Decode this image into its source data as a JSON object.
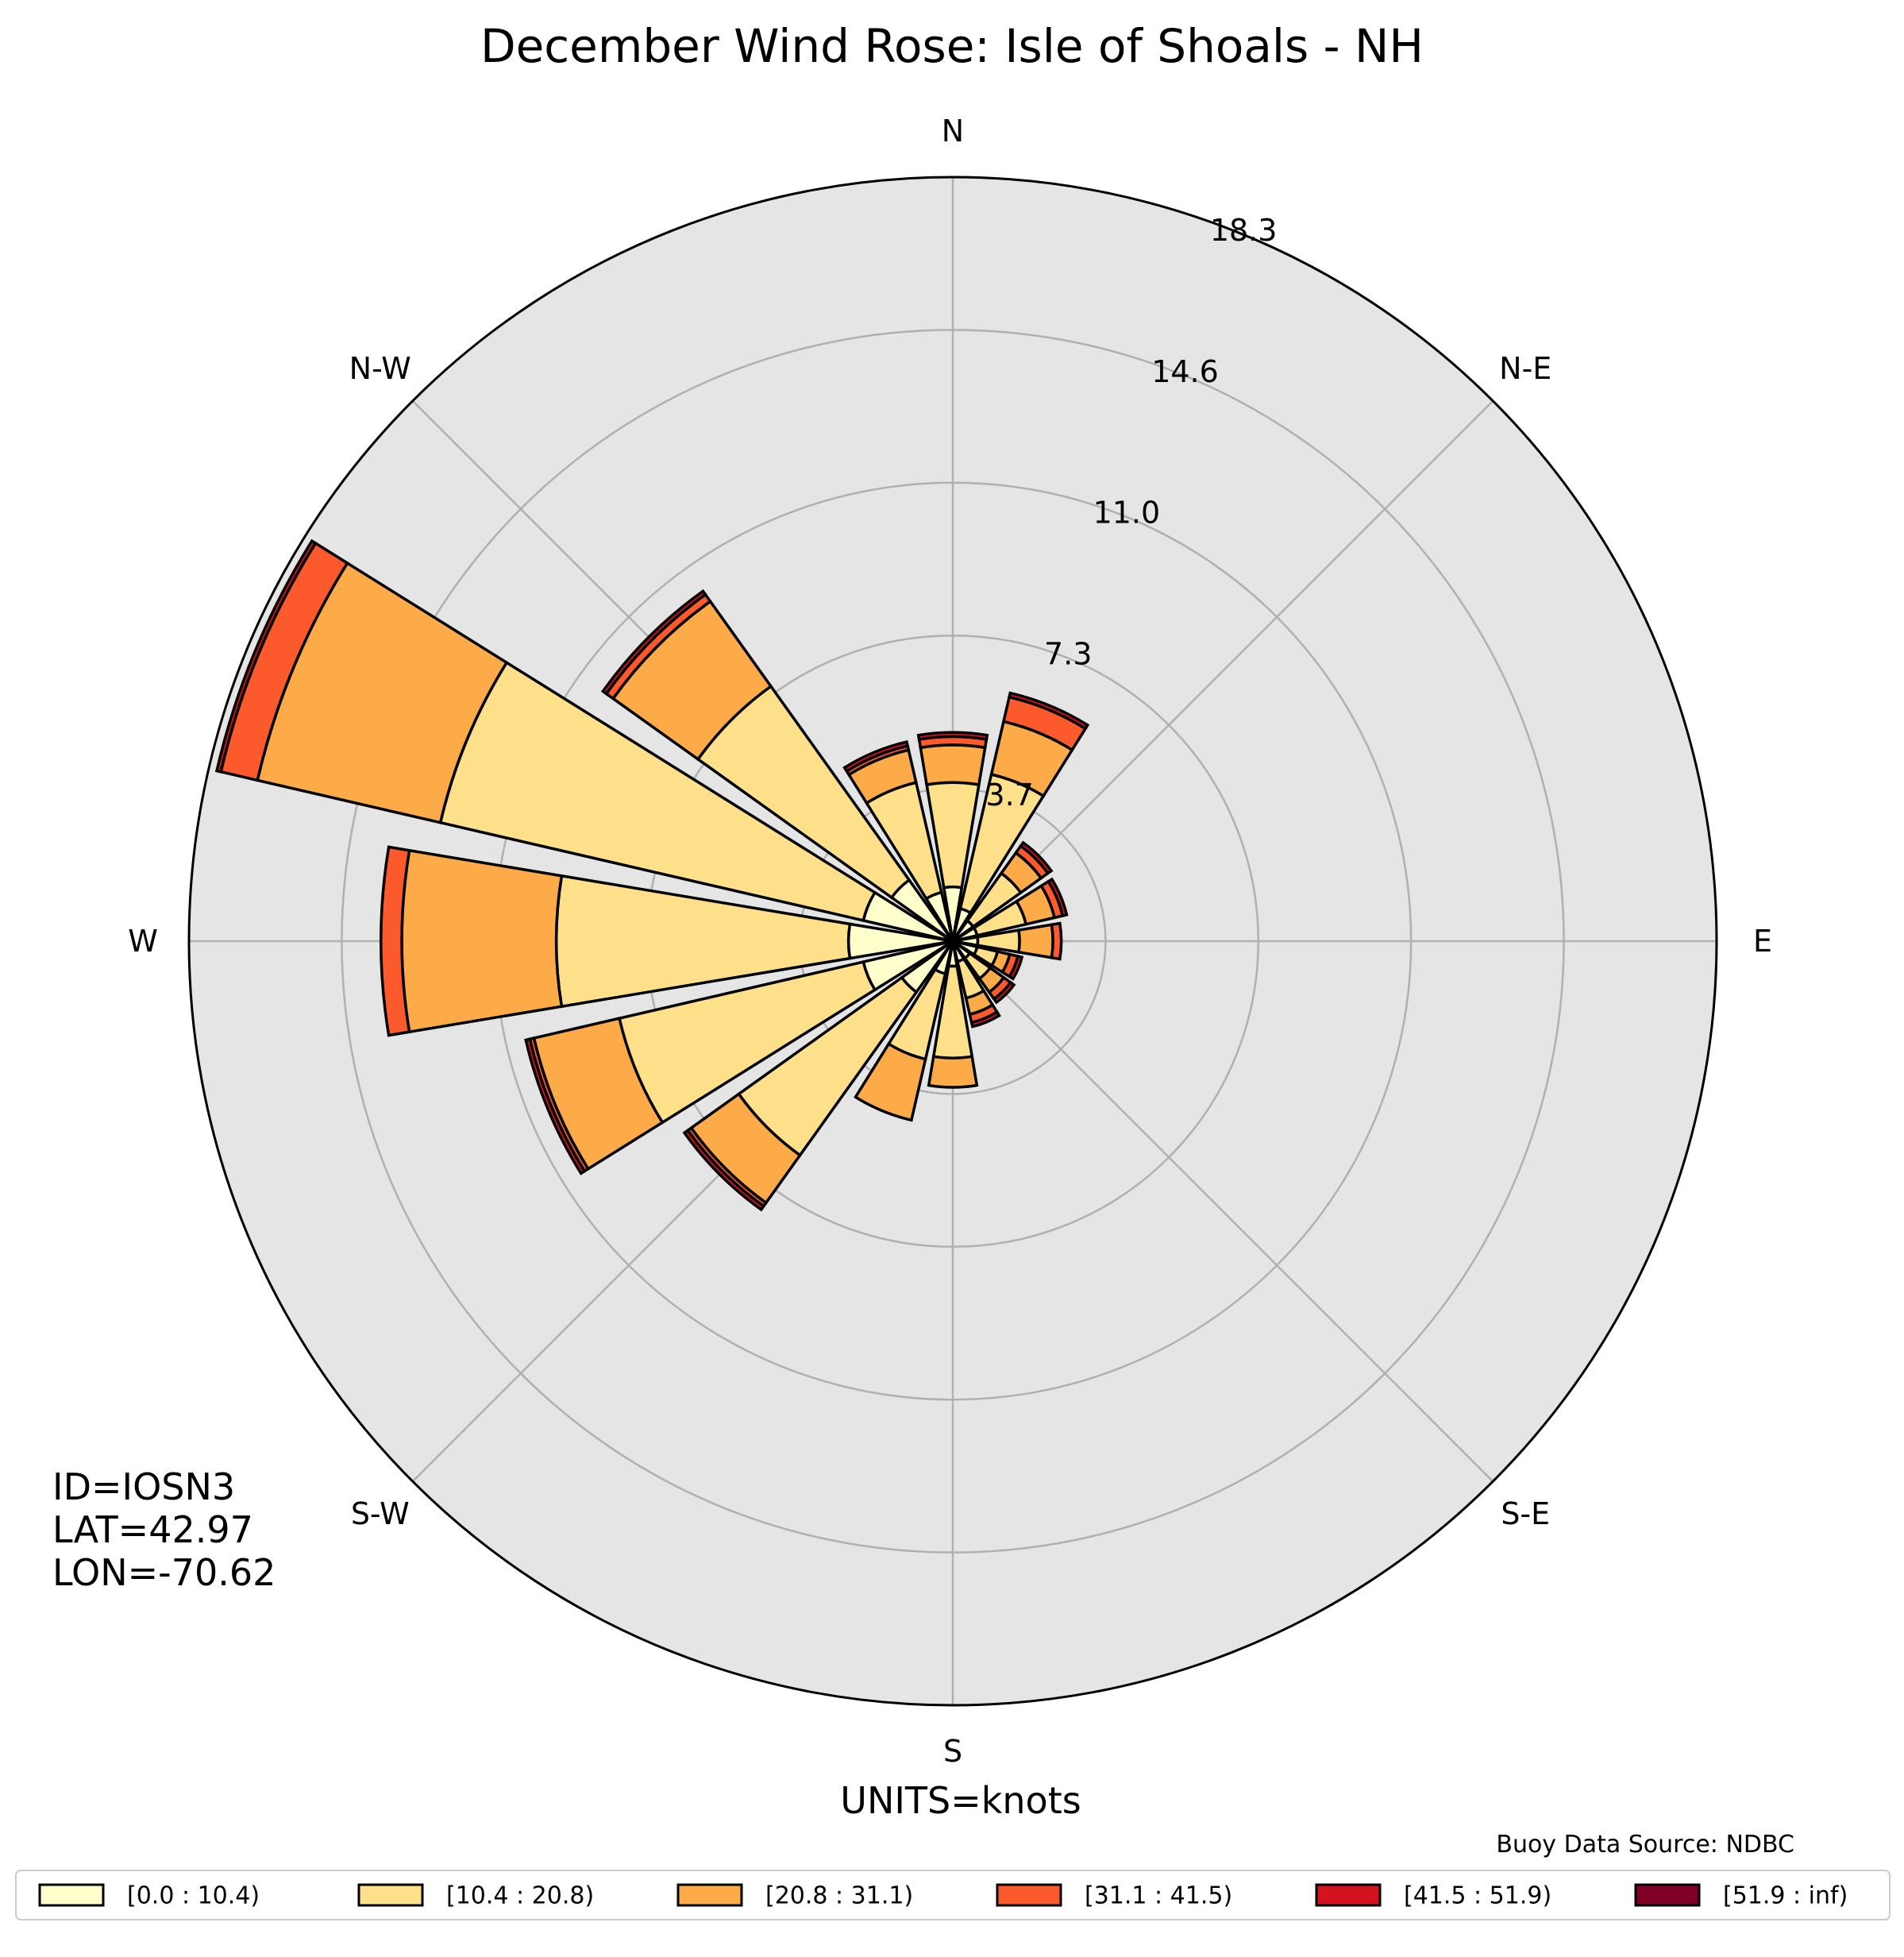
{
  "chart_data": {
    "type": "windrose",
    "title": "December Wind Rose: Isle of Shoals - NH",
    "units_label": "UNITS=knots",
    "source_label": "Buoy Data Source: NDBC",
    "station_info": [
      "ID=IOSN3",
      "LAT=42.97",
      "LON=-70.62"
    ],
    "compass_labels": [
      {
        "dir": 0,
        "label": "N"
      },
      {
        "dir": 45,
        "label": "N-E"
      },
      {
        "dir": 90,
        "label": "E"
      },
      {
        "dir": 135,
        "label": "S-E"
      },
      {
        "dir": 180,
        "label": "S"
      },
      {
        "dir": 225,
        "label": "S-W"
      },
      {
        "dir": 270,
        "label": "W"
      },
      {
        "dir": 315,
        "label": "N-W"
      }
    ],
    "radial_ticks": [
      {
        "value": 3.66,
        "label": "3.7"
      },
      {
        "value": 7.32,
        "label": "7.3"
      },
      {
        "value": 10.98,
        "label": "11.0"
      },
      {
        "value": 14.64,
        "label": "14.6"
      },
      {
        "value": 18.3,
        "label": "18.3"
      }
    ],
    "r_max": 18.3,
    "grid": true,
    "legend_position": "bottom",
    "speed_bins": [
      {
        "label": "[0.0 : 10.4)",
        "color": "#ffffcc"
      },
      {
        "label": "[10.4 : 20.8)",
        "color": "#fedf8a"
      },
      {
        "label": "[20.8 : 31.1)",
        "color": "#fdaa48"
      },
      {
        "label": "[31.1 : 41.5)",
        "color": "#fc5a2d"
      },
      {
        "label": "[41.5 : 51.9)",
        "color": "#d3141f"
      },
      {
        "label": "[51.9 : inf)",
        "color": "#800026"
      }
    ],
    "sector_width_deg": 18.95,
    "directions": [
      {
        "dir": 0,
        "cum": [
          1.3,
          3.8,
          4.7,
          4.9,
          5.0,
          5.0
        ]
      },
      {
        "dir": 22.5,
        "cum": [
          0.8,
          4.1,
          5.4,
          6.0,
          6.1,
          6.1
        ]
      },
      {
        "dir": 45,
        "cum": [
          0.6,
          2.0,
          2.6,
          2.8,
          2.9,
          2.9
        ]
      },
      {
        "dir": 67.5,
        "cum": [
          0.6,
          1.8,
          2.5,
          2.7,
          2.8,
          2.8
        ]
      },
      {
        "dir": 90,
        "cum": [
          0.6,
          1.6,
          2.4,
          2.6,
          2.6,
          2.6
        ]
      },
      {
        "dir": 112.5,
        "cum": [
          0.6,
          1.1,
          1.4,
          1.6,
          1.7,
          1.7
        ]
      },
      {
        "dir": 135,
        "cum": [
          0.5,
          1.1,
          1.5,
          1.7,
          1.8,
          1.8
        ]
      },
      {
        "dir": 157.5,
        "cum": [
          0.5,
          1.4,
          1.8,
          2.0,
          2.1,
          2.1
        ]
      },
      {
        "dir": 180,
        "cum": [
          0.6,
          2.8,
          3.5,
          3.5,
          3.5,
          3.5
        ]
      },
      {
        "dir": 202.5,
        "cum": [
          0.8,
          2.9,
          4.4,
          4.4,
          4.4,
          4.4
        ]
      },
      {
        "dir": 225,
        "cum": [
          1.5,
          6.3,
          7.7,
          7.8,
          7.9,
          7.9
        ]
      },
      {
        "dir": 247.5,
        "cum": [
          2.2,
          8.2,
          10.3,
          10.4,
          10.5,
          10.5
        ]
      },
      {
        "dir": 270,
        "cum": [
          2.5,
          9.5,
          13.2,
          13.7,
          13.7,
          13.7
        ]
      },
      {
        "dir": 292.5,
        "cum": [
          2.2,
          12.6,
          17.1,
          18.0,
          18.1,
          18.1
        ]
      },
      {
        "dir": 315,
        "cum": [
          1.8,
          7.5,
          10.0,
          10.2,
          10.3,
          10.3
        ]
      },
      {
        "dir": 337.5,
        "cum": [
          1.2,
          3.9,
          4.7,
          4.8,
          4.9,
          4.9
        ]
      }
    ]
  }
}
